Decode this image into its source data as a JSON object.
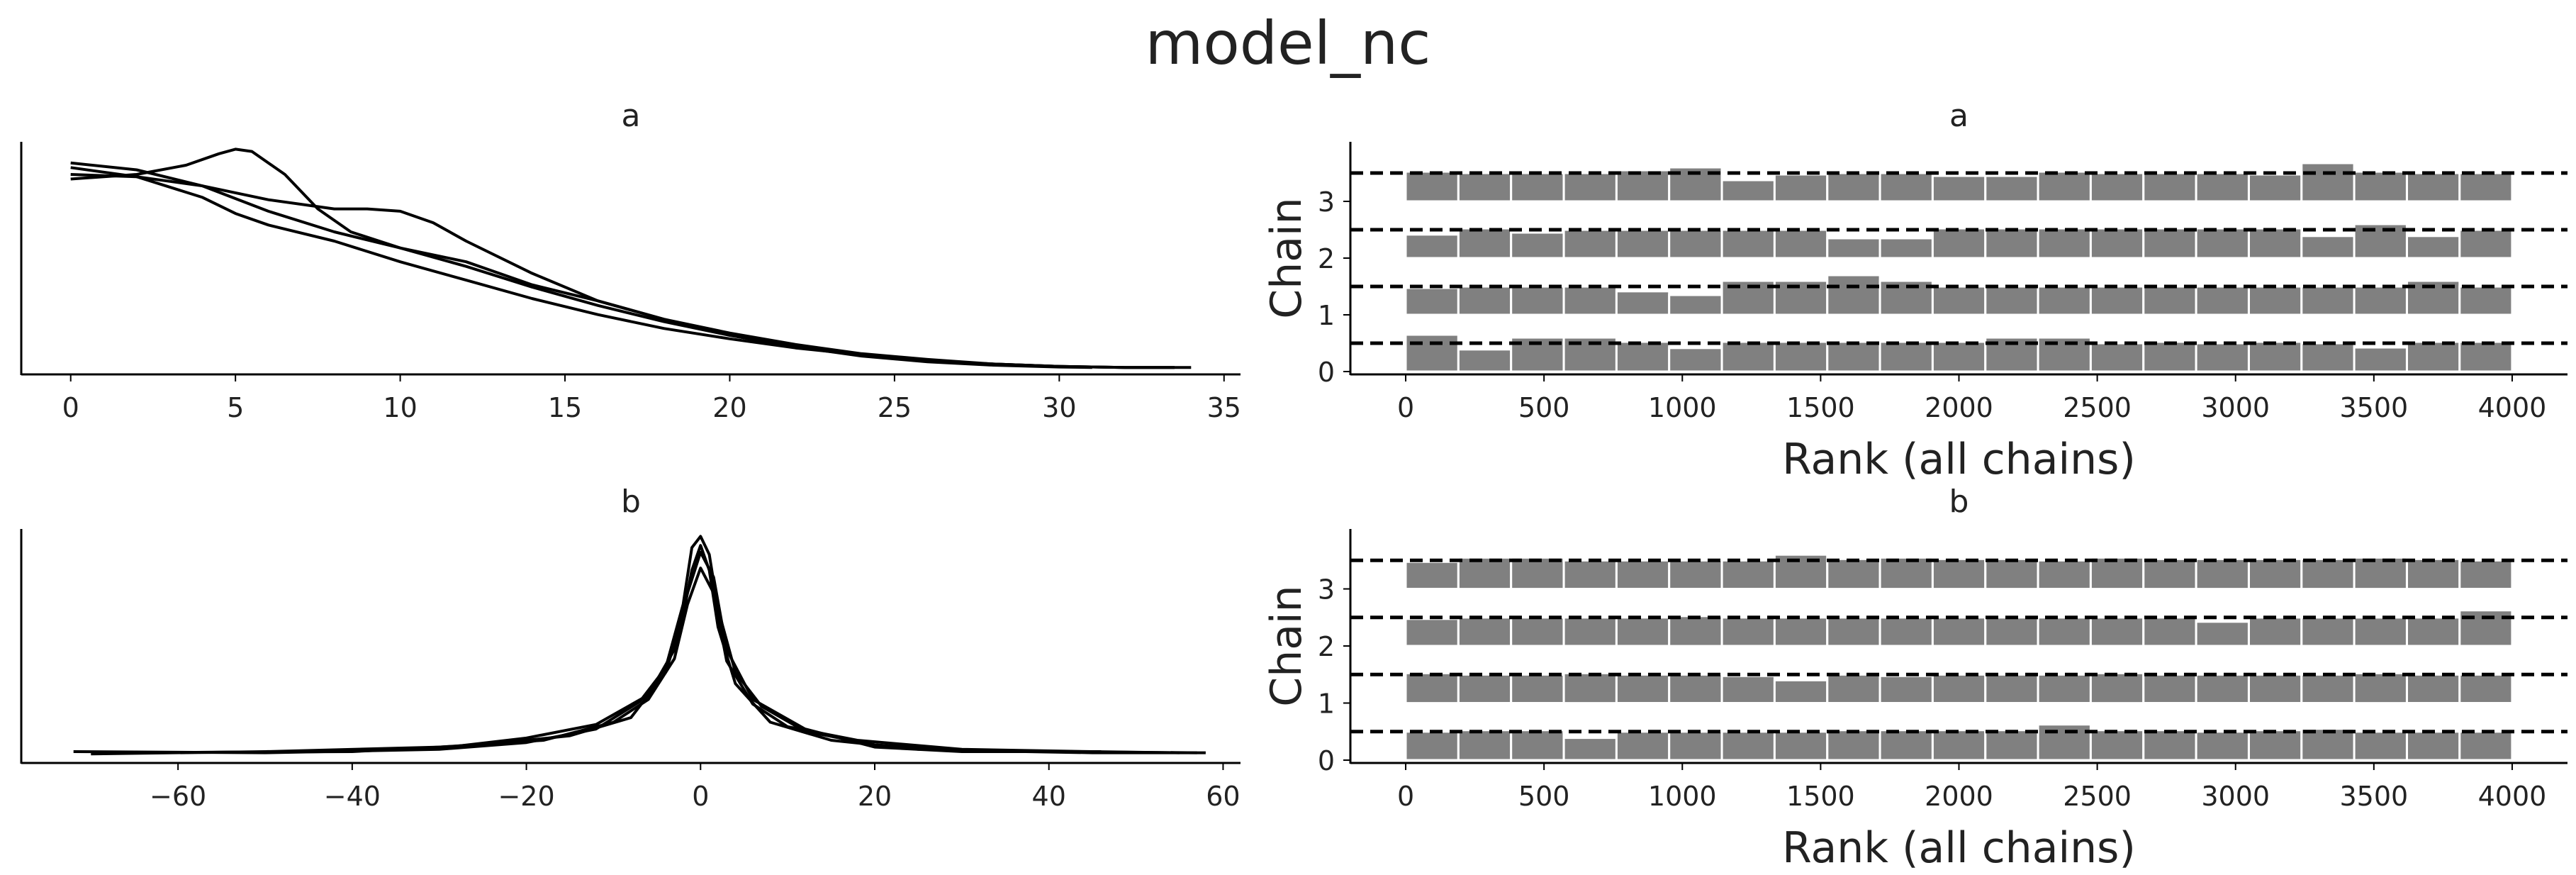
{
  "figure": {
    "title": "model_nc"
  },
  "colors": {
    "line": "#000000",
    "bar": "#808080",
    "bar_edge": "#ffffff",
    "text": "#222222"
  },
  "chart_data": [
    {
      "type": "line",
      "panel": "density",
      "title": "a",
      "xlim": [
        -1.5,
        35.5
      ],
      "xticks": [
        0,
        5,
        10,
        15,
        20,
        25,
        30,
        35
      ],
      "yticks_visible": false,
      "series": [
        {
          "x": [
            0,
            2,
            4,
            5,
            6,
            8,
            10,
            12,
            14,
            16,
            18,
            20,
            22,
            24,
            26,
            28,
            30,
            32,
            33.5
          ],
          "y": [
            0.9,
            0.86,
            0.77,
            0.7,
            0.65,
            0.58,
            0.49,
            0.41,
            0.33,
            0.26,
            0.2,
            0.155,
            0.115,
            0.085,
            0.06,
            0.045,
            0.035,
            0.03,
            0.03
          ]
        },
        {
          "x": [
            0,
            2,
            3.5,
            4.5,
            5,
            5.5,
            6.5,
            7.5,
            8.5,
            10,
            12,
            14,
            16,
            18,
            20,
            22,
            24,
            26,
            28,
            30,
            31
          ],
          "y": [
            0.85,
            0.87,
            0.91,
            0.96,
            0.98,
            0.97,
            0.87,
            0.72,
            0.62,
            0.55,
            0.47,
            0.38,
            0.3,
            0.23,
            0.17,
            0.12,
            0.08,
            0.055,
            0.04,
            0.032,
            0.03
          ]
        },
        {
          "x": [
            0,
            2,
            4,
            6,
            8,
            9,
            10,
            11,
            12,
            14,
            16,
            18,
            20,
            22,
            24,
            26,
            28,
            30,
            32,
            34
          ],
          "y": [
            0.87,
            0.86,
            0.82,
            0.76,
            0.72,
            0.72,
            0.71,
            0.66,
            0.58,
            0.44,
            0.32,
            0.24,
            0.17,
            0.12,
            0.085,
            0.06,
            0.045,
            0.035,
            0.03,
            0.03
          ]
        },
        {
          "x": [
            0,
            2,
            4,
            6,
            8,
            10,
            12,
            13,
            14,
            16,
            18,
            20,
            22,
            24,
            26,
            28,
            30,
            32,
            33.5
          ],
          "y": [
            0.92,
            0.89,
            0.82,
            0.71,
            0.62,
            0.55,
            0.49,
            0.44,
            0.39,
            0.32,
            0.24,
            0.18,
            0.13,
            0.09,
            0.065,
            0.045,
            0.035,
            0.03,
            0.03
          ]
        }
      ]
    },
    {
      "type": "bar",
      "panel": "rank",
      "title": "a",
      "xlabel": "Rank (all chains)",
      "ylabel": "Chain",
      "xlim": [
        -200,
        4200
      ],
      "xticks": [
        0,
        500,
        1000,
        1500,
        2000,
        2500,
        3000,
        3500,
        4000
      ],
      "yticks": [
        0,
        1,
        2,
        3
      ],
      "bin_edges": [
        0,
        190.5,
        381,
        571.5,
        762,
        952.5,
        1143,
        1333.5,
        1524,
        1714.5,
        1905,
        2095.5,
        2286,
        2476.5,
        2667,
        2857.5,
        3048,
        3238.5,
        3429,
        3619.5,
        3810,
        4000
      ],
      "series": [
        {
          "name": "0",
          "values": [
            1.3,
            0.78,
            1.2,
            1.2,
            1.05,
            0.83,
            1.05,
            1.05,
            1.05,
            1.05,
            1.05,
            1.2,
            1.2,
            1.0,
            1.05,
            1.0,
            1.05,
            1.0,
            0.85,
            1.05,
            1.05
          ]
        },
        {
          "name": "1",
          "values": [
            0.95,
            1.0,
            1.0,
            1.0,
            0.83,
            0.7,
            1.2,
            1.2,
            1.4,
            1.2,
            1.0,
            1.0,
            1.0,
            1.0,
            1.0,
            1.0,
            1.0,
            1.0,
            1.0,
            1.2,
            1.0
          ]
        },
        {
          "name": "2",
          "values": [
            0.83,
            1.05,
            0.9,
            1.0,
            1.0,
            1.0,
            1.0,
            1.0,
            0.7,
            0.7,
            1.05,
            1.05,
            1.05,
            1.05,
            1.05,
            1.05,
            1.05,
            0.78,
            1.2,
            0.78,
            1.0
          ]
        },
        {
          "name": "3",
          "values": [
            1.05,
            1.0,
            1.0,
            1.0,
            1.1,
            1.2,
            0.75,
            0.95,
            1.0,
            1.0,
            0.9,
            0.9,
            1.05,
            1.0,
            1.0,
            1.0,
            0.95,
            1.35,
            1.05,
            1.0,
            1.0
          ]
        }
      ]
    },
    {
      "type": "line",
      "panel": "density",
      "title": "b",
      "xlim": [
        -78,
        62
      ],
      "xticks": [
        -60,
        -40,
        -20,
        0,
        20,
        40,
        60
      ],
      "yticks_visible": false,
      "series": [
        {
          "x": [
            -72,
            -50,
            -30,
            -20,
            -12,
            -7,
            -4,
            -2,
            -1,
            0,
            1,
            2,
            4,
            7,
            12,
            20,
            30,
            45,
            58
          ],
          "y": [
            0.05,
            0.045,
            0.06,
            0.09,
            0.15,
            0.27,
            0.42,
            0.7,
            0.95,
            1.0,
            0.92,
            0.68,
            0.4,
            0.25,
            0.14,
            0.08,
            0.055,
            0.045,
            0.045
          ]
        },
        {
          "x": [
            -65,
            -45,
            -30,
            -20,
            -12,
            -6,
            -3,
            -1.5,
            0,
            1.5,
            3,
            6,
            12,
            20,
            30,
            46
          ],
          "y": [
            0.045,
            0.05,
            0.065,
            0.11,
            0.17,
            0.3,
            0.5,
            0.75,
            0.93,
            0.82,
            0.5,
            0.28,
            0.15,
            0.07,
            0.05,
            0.05
          ]
        },
        {
          "x": [
            -70,
            -50,
            -30,
            -18,
            -10,
            -6,
            -3,
            -1.5,
            0,
            1.5,
            3,
            6,
            10,
            18,
            30,
            45,
            55
          ],
          "y": [
            0.04,
            0.05,
            0.07,
            0.1,
            0.18,
            0.28,
            0.46,
            0.7,
            0.86,
            0.75,
            0.45,
            0.26,
            0.16,
            0.1,
            0.06,
            0.05,
            0.045
          ]
        },
        {
          "x": [
            -68,
            -40,
            -25,
            -15,
            -8,
            -4,
            -2,
            -1,
            0,
            1,
            2,
            4,
            8,
            15,
            25,
            40,
            57
          ],
          "y": [
            0.045,
            0.05,
            0.08,
            0.12,
            0.2,
            0.4,
            0.65,
            0.85,
            0.96,
            0.85,
            0.6,
            0.35,
            0.18,
            0.1,
            0.06,
            0.05,
            0.045
          ]
        }
      ]
    },
    {
      "type": "bar",
      "panel": "rank",
      "title": "b",
      "xlabel": "Rank (all chains)",
      "ylabel": "Chain",
      "xlim": [
        -200,
        4200
      ],
      "xticks": [
        0,
        500,
        1000,
        1500,
        2000,
        2500,
        3000,
        3500,
        4000
      ],
      "yticks": [
        0,
        1,
        2,
        3
      ],
      "bin_edges": [
        0,
        190.5,
        381,
        571.5,
        762,
        952.5,
        1143,
        1333.5,
        1524,
        1714.5,
        1905,
        2095.5,
        2286,
        2476.5,
        2667,
        2857.5,
        3048,
        3238.5,
        3429,
        3619.5,
        3810,
        4000
      ],
      "series": [
        {
          "name": "0",
          "values": [
            1.0,
            1.05,
            1.05,
            0.78,
            1.0,
            1.0,
            1.0,
            1.0,
            1.05,
            1.05,
            1.05,
            1.05,
            1.25,
            1.05,
            1.05,
            1.0,
            1.05,
            1.1,
            1.0,
            1.0,
            1.0
          ]
        },
        {
          "name": "1",
          "values": [
            1.05,
            1.0,
            1.0,
            1.05,
            1.0,
            1.0,
            0.95,
            0.8,
            1.0,
            0.95,
            1.0,
            1.0,
            1.0,
            1.05,
            1.0,
            1.0,
            1.0,
            1.0,
            1.05,
            1.0,
            1.0
          ]
        },
        {
          "name": "2",
          "values": [
            0.95,
            1.0,
            1.0,
            1.0,
            1.0,
            1.05,
            1.0,
            1.0,
            1.0,
            1.0,
            1.0,
            1.0,
            1.0,
            1.0,
            1.0,
            0.85,
            1.0,
            1.0,
            1.0,
            1.0,
            1.25
          ]
        },
        {
          "name": "3",
          "values": [
            0.95,
            1.1,
            1.1,
            1.0,
            1.0,
            1.0,
            1.0,
            1.2,
            1.05,
            1.1,
            1.05,
            1.05,
            1.0,
            1.1,
            1.05,
            1.05,
            1.05,
            1.05,
            1.1,
            1.05,
            1.0
          ]
        }
      ]
    }
  ]
}
